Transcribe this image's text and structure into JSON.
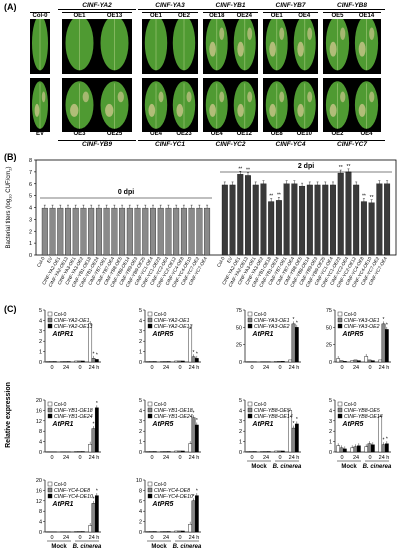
{
  "panel_a": {
    "label": "(A)",
    "top_groups": [
      {
        "gene": "",
        "lines": [
          "Col-0"
        ]
      },
      {
        "gene": "CINF-YA2",
        "lines": [
          "OE1",
          "OE13"
        ]
      },
      {
        "gene": "CINF-YA3",
        "lines": [
          "OE1",
          "OE2"
        ]
      },
      {
        "gene": "CINF-YB1",
        "lines": [
          "OE18",
          "OE24"
        ]
      },
      {
        "gene": "CINF-YB7",
        "lines": [
          "OE1",
          "OE4"
        ]
      },
      {
        "gene": "CINF-YB8",
        "lines": [
          "OE5",
          "OE14"
        ]
      }
    ],
    "bottom_groups": [
      {
        "gene": "",
        "lines": [
          "EV"
        ]
      },
      {
        "gene": "CINF-YB9",
        "lines": [
          "OE3",
          "OE25"
        ]
      },
      {
        "gene": "CINF-YC1",
        "lines": [
          "OE4",
          "OE23"
        ]
      },
      {
        "gene": "CINF-YC2",
        "lines": [
          "OE4",
          "OE12"
        ]
      },
      {
        "gene": "CINF-YC4",
        "lines": [
          "OE8",
          "OE10"
        ]
      },
      {
        "gene": "CINF-YC7",
        "lines": [
          "OE2",
          "OE4"
        ]
      }
    ],
    "colors": {
      "leaf_green": "#4f9a32",
      "leaf_yellow": "#c9c58a",
      "border": "#000000"
    }
  },
  "panel_b": {
    "label": "(B)",
    "ylabel": "Bacterial titers (log10 CUF/cm2)",
    "ylabel_parts": [
      "Bacterial titers (log",
      "10",
      " CUF/cm",
      "2",
      ")"
    ],
    "legend_0": "0 dpi",
    "legend_2": "2 dpi",
    "yticks": [
      "0",
      "1",
      "2",
      "3",
      "4",
      "5",
      "6",
      "7",
      "8"
    ],
    "categories": [
      "Col-0",
      "EV",
      "CINF-YA2-OE1",
      "CINF-YA2-OE13",
      "CINF-YA3-OE1",
      "CINF-YA3-OE2",
      "CINF-YB1-OE18",
      "CINF-YB1-OE24",
      "CINF-YB7-OE1",
      "CINF-YB7-OE4",
      "CINF-YB8-OE5",
      "CINF-YB8-OE14",
      "CINF-YB9-OE3",
      "CINF-YB9-OE25",
      "CINF-YC1-OE4",
      "CINF-YC1-OE23",
      "CINF-YC2-OE4",
      "CINF-YC2-OE12",
      "CINF-YC4-OE8",
      "CINF-YC4-OE10",
      "CINF-YC7-OE2",
      "CINF-YC7-OE4"
    ]
  },
  "panel_c": {
    "label": "(C)",
    "ylabel": "Relative expression",
    "xcat_mock": "Mock",
    "xcat_bc": "B. cinerea",
    "tick_0": "0",
    "tick_24": "24",
    "tick_24h": "24 h"
  },
  "chart_data": [
    {
      "type": "bar",
      "title": "",
      "ylabel": "Bacterial titers (log10 CUF/cm2)",
      "ylim": [
        0,
        8
      ],
      "categories": [
        "Col-0",
        "EV",
        "CINF-YA2-OE1",
        "CINF-YA2-OE13",
        "CINF-YA3-OE1",
        "CINF-YA3-OE2",
        "CINF-YB1-OE18",
        "CINF-YB1-OE24",
        "CINF-YB7-OE1",
        "CINF-YB7-OE4",
        "CINF-YB8-OE5",
        "CINF-YB8-OE14",
        "CINF-YB9-OE3",
        "CINF-YB9-OE25",
        "CINF-YC1-OE4",
        "CINF-YC1-OE23",
        "CINF-YC2-OE4",
        "CINF-YC2-OE12",
        "CINF-YC4-OE8",
        "CINF-YC4-OE10",
        "CINF-YC7-OE2",
        "CINF-YC7-OE4"
      ],
      "series": [
        {
          "name": "0 dpi",
          "values": [
            3.95,
            3.95,
            3.95,
            3.95,
            3.95,
            3.95,
            3.95,
            3.95,
            3.95,
            3.95,
            3.95,
            3.95,
            3.95,
            3.95,
            3.95,
            3.95,
            3.95,
            3.95,
            3.95,
            3.95,
            3.95,
            3.95
          ]
        },
        {
          "name": "2 dpi",
          "values": [
            5.9,
            5.9,
            6.8,
            6.7,
            5.9,
            6.0,
            4.5,
            4.6,
            6.0,
            6.0,
            5.8,
            5.9,
            5.9,
            5.9,
            5.9,
            6.9,
            7.0,
            5.9,
            4.5,
            4.4,
            6.0,
            6.0
          ]
        }
      ],
      "significance_2dpi": [
        "",
        "",
        "**",
        "**",
        "",
        "",
        "**",
        "**",
        "",
        "",
        "",
        "",
        "",
        "",
        "",
        "**",
        "**",
        "",
        "**",
        "**",
        "",
        ""
      ]
    },
    {
      "type": "bar",
      "gene": "AtPR1",
      "ymax": 5,
      "yticks": [
        0,
        1,
        2,
        3,
        4,
        5
      ],
      "groups": [
        "0",
        "24",
        "0",
        "24 h"
      ],
      "series": [
        {
          "name": "Col-0",
          "fill": "#ffffff",
          "values": [
            0.05,
            0.05,
            0.1,
            3.7
          ],
          "sig": [
            "",
            "",
            "",
            ""
          ]
        },
        {
          "name": "CINF-YA2-OE1",
          "fill": "#888888",
          "values": [
            0.05,
            0.05,
            0.1,
            0.35
          ],
          "sig": [
            "",
            "",
            "",
            "*"
          ]
        },
        {
          "name": "CINF-YA2-OE13",
          "fill": "#000000",
          "values": [
            0.05,
            0.05,
            0.1,
            0.25
          ],
          "sig": [
            "",
            "",
            "",
            "*"
          ]
        }
      ]
    },
    {
      "type": "bar",
      "gene": "AtPR5",
      "ymax": 5,
      "yticks": [
        0,
        1,
        2,
        3,
        4,
        5
      ],
      "groups": [
        "0",
        "24",
        "0",
        "24 h"
      ],
      "series": [
        {
          "name": "Col-0",
          "fill": "#ffffff",
          "values": [
            0.05,
            0.05,
            0.1,
            3.2
          ],
          "sig": [
            "",
            "",
            "",
            ""
          ]
        },
        {
          "name": "CINF-YA2-OE1",
          "fill": "#888888",
          "values": [
            0.05,
            0.05,
            0.1,
            0.5
          ],
          "sig": [
            "",
            "",
            "",
            "*"
          ]
        },
        {
          "name": "CINF-YA2-OE13",
          "fill": "#000000",
          "values": [
            0.05,
            0.05,
            0.1,
            0.35
          ],
          "sig": [
            "",
            "",
            "",
            "*"
          ]
        }
      ]
    },
    {
      "type": "bar",
      "gene": "AtPR1",
      "ymax": 75,
      "yticks": [
        0,
        25,
        50,
        75
      ],
      "groups": [
        "0",
        "24",
        "0",
        "24 h"
      ],
      "series": [
        {
          "name": "Col-0",
          "fill": "#ffffff",
          "values": [
            0.5,
            0.5,
            1,
            3
          ],
          "sig": [
            "",
            "",
            "",
            ""
          ]
        },
        {
          "name": "CINF-YA3-OE1",
          "fill": "#888888",
          "values": [
            0.5,
            0.5,
            1,
            55
          ],
          "sig": [
            "",
            "",
            "",
            "*"
          ]
        },
        {
          "name": "CINF-YA3-OE2",
          "fill": "#000000",
          "values": [
            0.5,
            0.5,
            1,
            50
          ],
          "sig": [
            "",
            "",
            "",
            "*"
          ]
        }
      ]
    },
    {
      "type": "bar",
      "gene": "AtPR5",
      "ymax": 75,
      "yticks": [
        0,
        25,
        50,
        75
      ],
      "groups": [
        "0",
        "24",
        "0",
        "24 h"
      ],
      "series": [
        {
          "name": "Col-0",
          "fill": "#ffffff",
          "values": [
            5,
            2,
            8,
            3
          ],
          "sig": [
            "",
            "",
            "",
            ""
          ]
        },
        {
          "name": "CINF-YA3-OE1",
          "fill": "#888888",
          "values": [
            2,
            3,
            3,
            55
          ],
          "sig": [
            "",
            "",
            "",
            "*"
          ]
        },
        {
          "name": "CINF-YA3-OE2",
          "fill": "#000000",
          "values": [
            1,
            2,
            2,
            47
          ],
          "sig": [
            "",
            "",
            "",
            "*"
          ]
        }
      ]
    },
    {
      "type": "bar",
      "gene": "AtPR1",
      "ymax": 20,
      "yticks": [
        0,
        4,
        8,
        12,
        16,
        20
      ],
      "groups": [
        "0",
        "24",
        "0",
        "24 h"
      ],
      "series": [
        {
          "name": "Col-0",
          "fill": "#ffffff",
          "values": [
            0.1,
            0.1,
            0.2,
            3
          ],
          "sig": [
            "",
            "",
            "",
            ""
          ]
        },
        {
          "name": "CINF-YB1-OE18",
          "fill": "#888888",
          "values": [
            0.1,
            0.1,
            0.2,
            9
          ],
          "sig": [
            "",
            "",
            "",
            "*"
          ]
        },
        {
          "name": "CINF-YB1-OE24",
          "fill": "#000000",
          "values": [
            0.1,
            0.1,
            0.2,
            17
          ],
          "sig": [
            "",
            "",
            "",
            "*"
          ]
        }
      ]
    },
    {
      "type": "bar",
      "gene": "AtPR5",
      "ymax": 5,
      "yticks": [
        0,
        1,
        2,
        3,
        4,
        5
      ],
      "groups": [
        "0",
        "24",
        "0",
        "24 h"
      ],
      "series": [
        {
          "name": "Col-0",
          "fill": "#ffffff",
          "values": [
            0.05,
            0.05,
            0.1,
            0.8
          ],
          "sig": [
            "",
            "",
            "",
            ""
          ]
        },
        {
          "name": "CINF-YB1-OE18",
          "fill": "#888888",
          "values": [
            0.05,
            0.05,
            0.1,
            3.3
          ],
          "sig": [
            "",
            "",
            "",
            "*"
          ]
        },
        {
          "name": "CINF-YB1-OE24",
          "fill": "#000000",
          "values": [
            0.05,
            0.05,
            0.1,
            2.6
          ],
          "sig": [
            "",
            "",
            "",
            "*"
          ]
        }
      ]
    },
    {
      "type": "bar",
      "gene": "AtPR1",
      "ymax": 5,
      "yticks": [
        0,
        1,
        2,
        3,
        4,
        5
      ],
      "groups": [
        "0",
        "24",
        "0",
        "24 h"
      ],
      "series": [
        {
          "name": "Col-0",
          "fill": "#ffffff",
          "values": [
            0.05,
            0.05,
            0.1,
            4.0
          ],
          "sig": [
            "",
            "",
            "",
            ""
          ]
        },
        {
          "name": "CINF-YB8-OE5",
          "fill": "#888888",
          "values": [
            0.05,
            0.05,
            0.1,
            2.3
          ],
          "sig": [
            "",
            "",
            "",
            "*"
          ]
        },
        {
          "name": "CINF-YB8-OE14",
          "fill": "#000000",
          "values": [
            0.05,
            0.05,
            0.1,
            2.7
          ],
          "sig": [
            "",
            "",
            "",
            "*"
          ]
        }
      ]
    },
    {
      "type": "bar",
      "gene": "AtPR5",
      "ymax": 5,
      "yticks": [
        0,
        1,
        2,
        3,
        4,
        5
      ],
      "groups": [
        "0",
        "24",
        "0",
        "24 h"
      ],
      "series": [
        {
          "name": "Col-0",
          "fill": "#ffffff",
          "values": [
            0.6,
            0.4,
            0.5,
            3.4
          ],
          "sig": [
            "",
            "",
            "",
            ""
          ]
        },
        {
          "name": "CINF-YB8-OE5",
          "fill": "#888888",
          "values": [
            0.4,
            0.5,
            0.8,
            0.7
          ],
          "sig": [
            "",
            "",
            "",
            "*"
          ]
        },
        {
          "name": "CINF-YB8-OE14",
          "fill": "#000000",
          "values": [
            0.3,
            0.6,
            0.7,
            0.8
          ],
          "sig": [
            "",
            "",
            "",
            "*"
          ]
        }
      ]
    },
    {
      "type": "bar",
      "gene": "AtPR1",
      "ymax": 20,
      "yticks": [
        0,
        4,
        8,
        12,
        16,
        20
      ],
      "groups": [
        "0",
        "24",
        "0",
        "24 h"
      ],
      "series": [
        {
          "name": "Col-0",
          "fill": "#ffffff",
          "values": [
            0.1,
            0.1,
            0.2,
            2.5
          ],
          "sig": [
            "",
            "",
            "",
            ""
          ]
        },
        {
          "name": "CINF-YC4-OE8",
          "fill": "#888888",
          "values": [
            0.1,
            0.1,
            0.2,
            11
          ],
          "sig": [
            "",
            "",
            "",
            "*"
          ]
        },
        {
          "name": "CINF-YC4-OE10",
          "fill": "#000000",
          "values": [
            0.1,
            0.1,
            0.2,
            14
          ],
          "sig": [
            "",
            "",
            "",
            "*"
          ]
        }
      ]
    },
    {
      "type": "bar",
      "gene": "AtPR5",
      "ymax": 10,
      "yticks": [
        0,
        2,
        4,
        6,
        8,
        10
      ],
      "groups": [
        "0",
        "24",
        "0",
        "24 h"
      ],
      "series": [
        {
          "name": "Col-0",
          "fill": "#ffffff",
          "values": [
            0.1,
            0.1,
            0.2,
            1.5
          ],
          "sig": [
            "",
            "",
            "",
            ""
          ]
        },
        {
          "name": "CINF-YC4-OE8",
          "fill": "#888888",
          "values": [
            0.1,
            0.1,
            0.2,
            6
          ],
          "sig": [
            "",
            "",
            "",
            "*"
          ]
        },
        {
          "name": "CINF-YC4-OE10",
          "fill": "#000000",
          "values": [
            0.1,
            0.1,
            0.2,
            7
          ],
          "sig": [
            "",
            "",
            "",
            "*"
          ]
        }
      ]
    }
  ]
}
